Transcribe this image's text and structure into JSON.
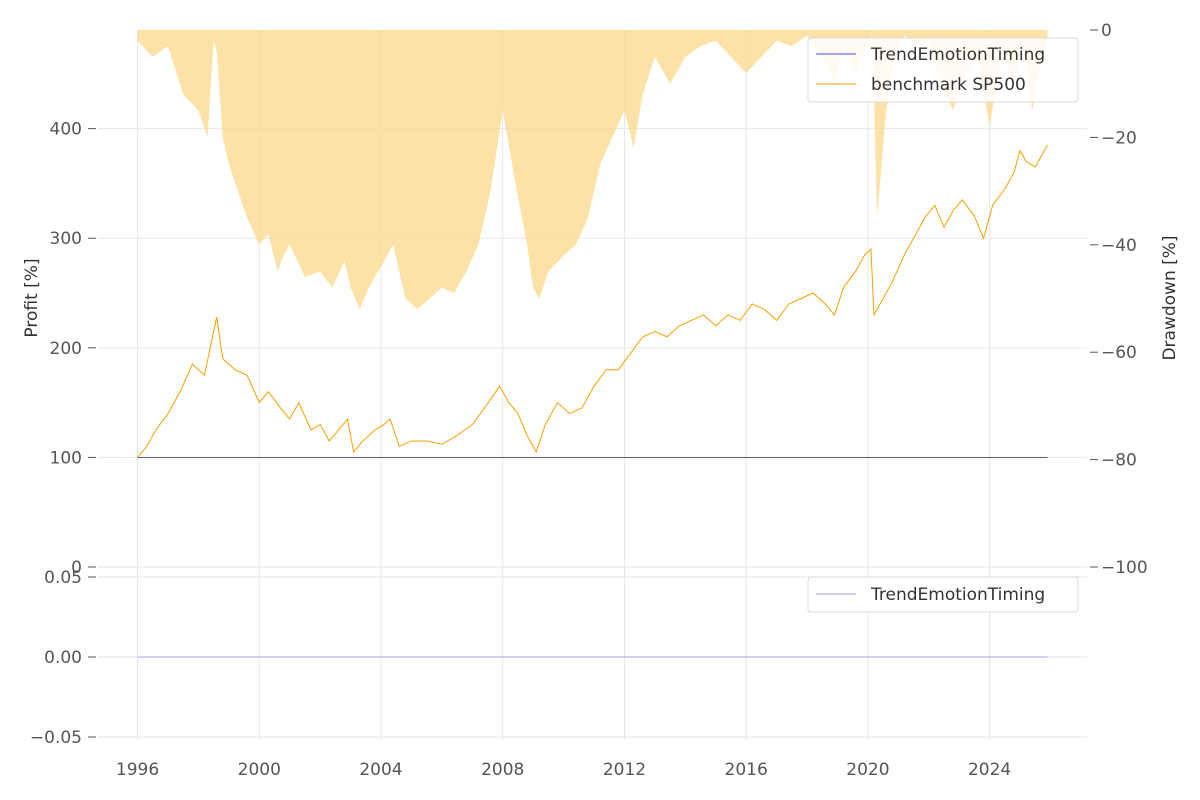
{
  "chart_data": [
    {
      "type": "line",
      "panel": "top",
      "ylabel": "Profit [%]",
      "ylim": [
        0,
        490
      ],
      "yticks": [
        0,
        100,
        200,
        300,
        400
      ],
      "xlim": [
        1994.7,
        2027.2
      ],
      "xticks": [
        1996,
        2000,
        2004,
        2008,
        2012,
        2016,
        2020,
        2024
      ],
      "grid": true,
      "legend_position": "top-right",
      "colors": {
        "strategy": "#4f4fcf",
        "benchmark": "#f5a000",
        "drawdown": "#fcd88a"
      },
      "series": [
        {
          "name": "TrendEmotionTiming",
          "x": [
            1996.0,
            2025.9
          ],
          "values": [
            100,
            100
          ]
        },
        {
          "name": "benchmark SP500",
          "x": [
            1996.0,
            1996.3,
            1996.6,
            1997.0,
            1997.4,
            1997.8,
            1998.2,
            1998.5,
            1998.6,
            1998.8,
            1999.2,
            1999.6,
            2000.0,
            2000.3,
            2000.7,
            2001.0,
            2001.3,
            2001.7,
            2002.0,
            2002.3,
            2002.6,
            2002.9,
            2003.1,
            2003.4,
            2003.8,
            2004.1,
            2004.3,
            2004.6,
            2005.0,
            2005.5,
            2006.0,
            2006.5,
            2007.0,
            2007.4,
            2007.9,
            2008.2,
            2008.5,
            2008.8,
            2009.1,
            2009.4,
            2009.8,
            2010.2,
            2010.6,
            2011.0,
            2011.4,
            2011.8,
            2012.2,
            2012.6,
            2013.0,
            2013.4,
            2013.8,
            2014.2,
            2014.6,
            2015.0,
            2015.4,
            2015.8,
            2016.2,
            2016.6,
            2017.0,
            2017.4,
            2017.8,
            2018.2,
            2018.6,
            2018.9,
            2019.2,
            2019.6,
            2019.9,
            2020.1,
            2020.2,
            2020.4,
            2020.8,
            2021.2,
            2021.6,
            2021.9,
            2022.2,
            2022.5,
            2022.8,
            2023.1,
            2023.5,
            2023.8,
            2024.1,
            2024.5,
            2024.8,
            2025.0,
            2025.2,
            2025.5,
            2025.9
          ],
          "values": [
            100,
            110,
            125,
            140,
            160,
            185,
            175,
            215,
            228,
            190,
            180,
            175,
            150,
            160,
            145,
            135,
            150,
            125,
            130,
            115,
            125,
            135,
            105,
            115,
            125,
            130,
            135,
            110,
            115,
            115,
            112,
            120,
            130,
            145,
            165,
            150,
            140,
            120,
            105,
            130,
            150,
            140,
            145,
            165,
            180,
            180,
            195,
            210,
            215,
            210,
            220,
            225,
            230,
            220,
            230,
            225,
            240,
            235,
            225,
            240,
            245,
            250,
            240,
            230,
            255,
            270,
            285,
            290,
            230,
            240,
            260,
            285,
            305,
            320,
            330,
            310,
            325,
            335,
            320,
            300,
            330,
            345,
            360,
            380,
            370,
            365,
            385
          ]
        }
      ]
    },
    {
      "type": "area",
      "panel": "top",
      "ylabel": "Drawdown [%]",
      "ylim": [
        -100,
        0
      ],
      "yticks": [
        0,
        -20,
        -40,
        -60,
        -80,
        -100
      ],
      "x": [
        1996.0,
        1996.5,
        1997.0,
        1997.5,
        1998.0,
        1998.3,
        1998.5,
        1998.6,
        1998.8,
        1999.0,
        1999.3,
        1999.6,
        2000.0,
        2000.3,
        2000.6,
        2000.8,
        2001.0,
        2001.5,
        2002.0,
        2002.4,
        2002.8,
        2003.0,
        2003.3,
        2003.6,
        2004.0,
        2004.4,
        2004.8,
        2005.2,
        2005.6,
        2006.0,
        2006.4,
        2006.8,
        2007.2,
        2007.6,
        2008.0,
        2008.4,
        2008.8,
        2009.0,
        2009.2,
        2009.5,
        2010.0,
        2010.4,
        2010.8,
        2011.2,
        2011.6,
        2012.0,
        2012.3,
        2012.6,
        2013.0,
        2013.5,
        2014.0,
        2014.5,
        2015.0,
        2015.5,
        2016.0,
        2016.5,
        2017.0,
        2017.5,
        2018.0,
        2018.5,
        2018.9,
        2019.2,
        2019.6,
        2020.0,
        2020.15,
        2020.3,
        2020.6,
        2020.9,
        2021.2,
        2021.6,
        2022.0,
        2022.4,
        2022.8,
        2023.2,
        2023.6,
        2024.0,
        2024.4,
        2024.8,
        2025.1,
        2025.4,
        2025.7,
        2025.9
      ],
      "values": [
        -2,
        -5,
        -3,
        -12,
        -15,
        -20,
        -2,
        -4,
        -20,
        -25,
        -30,
        -35,
        -40,
        -38,
        -45,
        -42,
        -40,
        -46,
        -45,
        -48,
        -43,
        -48,
        -52,
        -48,
        -44,
        -40,
        -50,
        -52,
        -50,
        -48,
        -49,
        -45,
        -40,
        -30,
        -15,
        -28,
        -40,
        -48,
        -50,
        -45,
        -42,
        -40,
        -35,
        -25,
        -20,
        -15,
        -22,
        -12,
        -5,
        -10,
        -5,
        -3,
        -2,
        -5,
        -8,
        -5,
        -2,
        -3,
        -1,
        -5,
        -10,
        -3,
        -8,
        -2,
        -1,
        -35,
        -15,
        -5,
        -1,
        -3,
        -2,
        -10,
        -15,
        -8,
        -5,
        -18,
        -4,
        -10,
        -2,
        -15,
        -5,
        -2
      ]
    },
    {
      "type": "line",
      "panel": "bottom",
      "ylim": [
        -0.05,
        0.05
      ],
      "yticks": [
        "0.05",
        "0.00",
        "−0.05"
      ],
      "legend_position": "top-right",
      "series": [
        {
          "name": "TrendEmotionTiming",
          "x": [
            1996.0,
            2025.9
          ],
          "values": [
            0,
            0
          ]
        }
      ]
    }
  ],
  "text": {
    "top_ylabel": "Profit [%]",
    "right_ylabel": "Drawdown [%]",
    "top_legend": [
      "TrendEmotionTiming",
      "benchmark SP500"
    ],
    "bottom_legend": [
      "TrendEmotionTiming"
    ],
    "left_ticks": [
      "0",
      "100",
      "200",
      "300",
      "400"
    ],
    "right_ticks": [
      "0",
      "−20",
      "−40",
      "−60",
      "−80",
      "−100"
    ],
    "bottom_ticks": [
      "0.05",
      "0.00",
      "−0.05"
    ],
    "x_ticks": [
      "1996",
      "2000",
      "2004",
      "2008",
      "2012",
      "2016",
      "2020",
      "2024"
    ]
  }
}
